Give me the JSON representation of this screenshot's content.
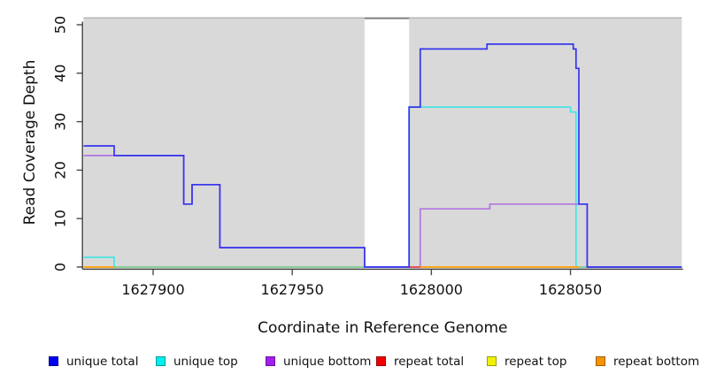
{
  "figure": {
    "plot_bg": "#d9d9d9",
    "top_border_color": "#b9b9b9",
    "gap_border_color": "#7f7f7f",
    "axis_color": "#3d3d3d",
    "tick_color": "#4a4a4a",
    "text_color": "#111111"
  },
  "chart_data": {
    "type": "line",
    "subtype": "step",
    "title": "",
    "xlabel": "Coordinate in Reference Genome",
    "ylabel": "Read Coverage Depth",
    "xlim": [
      1627875,
      1628090
    ],
    "ylim": [
      0,
      51.4
    ],
    "x_ticks": [
      1627900,
      1627950,
      1628000,
      1628050
    ],
    "y_ticks": [
      0,
      10,
      20,
      30,
      40,
      50
    ],
    "grid": false,
    "gap_region": {
      "x_start": 1627976,
      "x_end": 1627992,
      "fill": "#ffffff"
    },
    "series": [
      {
        "name": "unique top",
        "color": "#49e3e8",
        "segments": [
          [
            [
              1627875,
              2
            ],
            [
              1627886,
              0
            ],
            [
              1627992,
              33
            ],
            [
              1628050,
              32
            ],
            [
              1628052,
              0
            ],
            [
              1628090,
              0
            ]
          ]
        ]
      },
      {
        "name": "unique bottom",
        "color": "#b275e2",
        "segments": [
          [
            [
              1627875,
              23
            ],
            [
              1627911,
              13
            ],
            [
              1627914,
              17
            ],
            [
              1627924,
              4
            ],
            [
              1627976,
              0
            ],
            [
              1627996,
              12
            ],
            [
              1628021,
              13
            ],
            [
              1628056,
              0
            ],
            [
              1628090,
              0
            ]
          ]
        ]
      },
      {
        "name": "repeat total",
        "color": "#ee4a45",
        "segments": [
          [
            [
              1627991,
              0
            ],
            [
              1627996,
              0
            ]
          ]
        ]
      },
      {
        "name": "repeat top",
        "color": "#f2f200",
        "segments": []
      },
      {
        "name": "zero baseline green",
        "color": "#8fc98f",
        "segments": [
          [
            [
              1627886,
              0
            ],
            [
              1627976,
              0
            ]
          ],
          [
            [
              1628053,
              0
            ],
            [
              1628056,
              0
            ]
          ]
        ]
      },
      {
        "name": "repeat bottom",
        "color": "#ff9f00",
        "segments": [
          [
            [
              1627875,
              0
            ],
            [
              1627886,
              0
            ]
          ],
          [
            [
              1627996,
              0
            ],
            [
              1628053,
              0
            ]
          ]
        ]
      },
      {
        "name": "unique total",
        "color": "#3535ee",
        "segments": [
          [
            [
              1627875,
              25
            ],
            [
              1627886,
              23
            ],
            [
              1627911,
              13
            ],
            [
              1627914,
              17
            ],
            [
              1627924,
              4
            ],
            [
              1627976,
              0
            ],
            [
              1627992,
              33
            ],
            [
              1627996,
              45
            ],
            [
              1628020,
              46
            ],
            [
              1628051,
              45
            ],
            [
              1628052,
              41
            ],
            [
              1628053,
              13
            ],
            [
              1628056,
              0
            ],
            [
              1628090,
              0
            ]
          ]
        ]
      }
    ]
  },
  "legend": {
    "items": [
      {
        "label": "unique total",
        "color": "#0000ee"
      },
      {
        "label": "unique top",
        "color": "#00eeee"
      },
      {
        "label": "unique bottom",
        "color": "#a020f0"
      },
      {
        "label": "repeat total",
        "color": "#ee0000"
      },
      {
        "label": "repeat top",
        "color": "#f2f200"
      },
      {
        "label": "repeat bottom",
        "color": "#f59300"
      }
    ]
  }
}
